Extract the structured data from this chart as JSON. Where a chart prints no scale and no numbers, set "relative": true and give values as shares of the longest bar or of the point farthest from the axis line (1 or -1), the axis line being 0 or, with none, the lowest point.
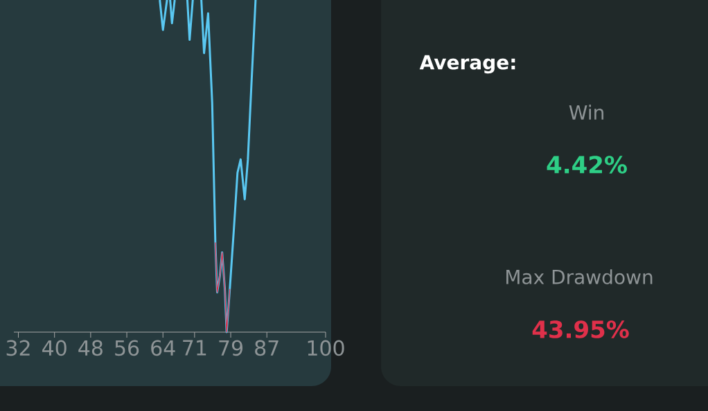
{
  "chart_data": [
    {
      "type": "line",
      "relative": true,
      "x": [
        63.3,
        64.0,
        64.9,
        65.2,
        65.6,
        66.0,
        66.6,
        68.0,
        69.4,
        69.9,
        70.6,
        71.5,
        72.5,
        73.1,
        74.0,
        74.9,
        75.6,
        76.0,
        76.6,
        77.1,
        77.7,
        78.1,
        78.8,
        79.7,
        80.5,
        81.2,
        82.1,
        82.8,
        83.6,
        84.5
      ],
      "xlim": [
        31,
        100
      ],
      "xticks": [
        32,
        40,
        48,
        56,
        64,
        71,
        79,
        87,
        100
      ],
      "series": [
        {
          "color": "#5ac8f2",
          "values": [
            1,
            0.91,
            1,
            null,
            1,
            0.93,
            1,
            null,
            1,
            0.88,
            1,
            null,
            1,
            0.84,
            0.96,
            0.69,
            0.27,
            0.12,
            0.17,
            0.24,
            0.13,
            0.0,
            0.13,
            0.31,
            0.48,
            0.52,
            0.4,
            0.52,
            0.75,
            1
          ]
        },
        {
          "color": "#e8263f",
          "x": [
            75.6,
            76.0,
            76.6,
            77.1,
            77.7,
            78.1,
            78.8
          ],
          "values": [
            0.27,
            0.12,
            0.17,
            0.24,
            0.13,
            0.0,
            0.13
          ]
        }
      ]
    },
    {
      "type": "other",
      "title": "Average:",
      "annotations": [
        "Win",
        "4.42%",
        "Max Drawdown",
        "43.95%"
      ]
    }
  ]
}
